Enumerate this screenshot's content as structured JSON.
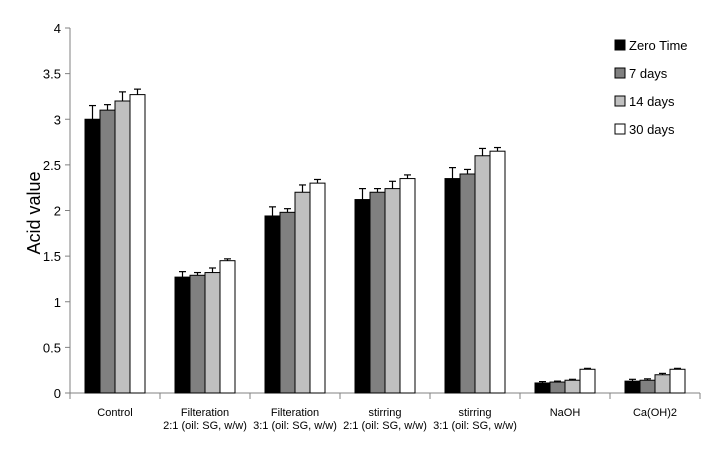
{
  "chart_data": {
    "type": "bar",
    "ylabel": "Acid value",
    "xlabel": "",
    "ylim": [
      0,
      4
    ],
    "yticks": [
      "0",
      "0.5",
      "1",
      "1.5",
      "2",
      "2.5",
      "3",
      "3.5",
      "4"
    ],
    "grid": false,
    "legend": "top-right",
    "categories": [
      [
        "Control"
      ],
      [
        "Filteration",
        "2:1 (oil: SG, w/w)"
      ],
      [
        "Filteration",
        "3:1 (oil: SG, w/w)"
      ],
      [
        "stirring",
        "2:1 (oil: SG, w/w)"
      ],
      [
        "stirring",
        "3:1 (oil: SG, w/w)"
      ],
      [
        "NaOH"
      ],
      [
        "Ca(OH)2"
      ]
    ],
    "series": [
      {
        "name": "Zero Time",
        "color": "#000000",
        "values": [
          3.0,
          1.27,
          1.94,
          2.12,
          2.35,
          0.11,
          0.13
        ],
        "errors": [
          0.15,
          0.06,
          0.1,
          0.12,
          0.12,
          0.015,
          0.02
        ]
      },
      {
        "name": "7 days",
        "color": "#808080",
        "values": [
          3.1,
          1.29,
          1.98,
          2.2,
          2.4,
          0.12,
          0.14
        ],
        "errors": [
          0.06,
          0.03,
          0.04,
          0.04,
          0.05,
          0.01,
          0.015
        ]
      },
      {
        "name": "14 days",
        "color": "#c0c0c0",
        "values": [
          3.2,
          1.32,
          2.2,
          2.24,
          2.6,
          0.14,
          0.2
        ],
        "errors": [
          0.1,
          0.05,
          0.08,
          0.08,
          0.08,
          0.01,
          0.015
        ]
      },
      {
        "name": "30 days",
        "color": "#ffffff",
        "values": [
          3.27,
          1.45,
          2.3,
          2.35,
          2.65,
          0.26,
          0.26
        ],
        "errors": [
          0.06,
          0.02,
          0.04,
          0.04,
          0.04,
          0.01,
          0.01
        ]
      }
    ]
  }
}
